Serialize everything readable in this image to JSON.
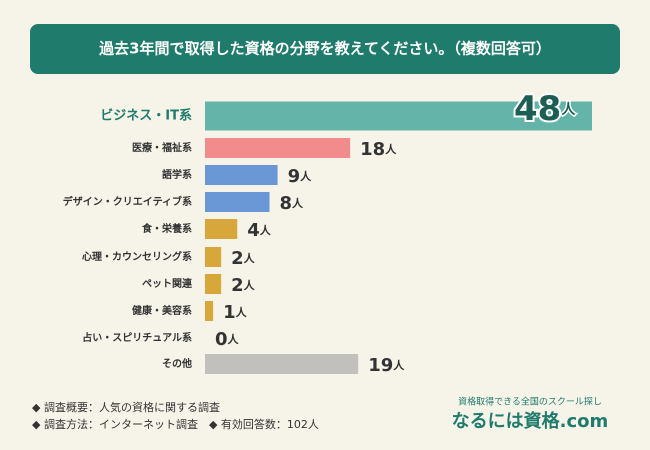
{
  "chart_data": {
    "type": "bar",
    "orientation": "horizontal",
    "title": "過去3年間で取得した資格の分野を教えてください。（複数回答可）",
    "categories": [
      "ビジネス・IT系",
      "医療・福祉系",
      "語学系",
      "デザイン・クリエイティブ系",
      "食・栄養系",
      "心理・カウンセリング系",
      "ペット関連",
      "健康・美容系",
      "占い・スピリチュアル系",
      "その他"
    ],
    "values": [
      48,
      18,
      9,
      8,
      4,
      2,
      2,
      1,
      0,
      19
    ],
    "unit": "人",
    "colors": [
      "#64b4aa",
      "#f28c8c",
      "#6a97d6",
      "#6a97d6",
      "#d7a73c",
      "#d7a73c",
      "#d7a73c",
      "#d7a73c",
      "#d7a73c",
      "#c2c0bc"
    ],
    "notes": [
      "◆ 調査概要：人気の資格に関する調査",
      "◆ 調査方法：インターネット調査　◆ 有効回答数：102人"
    ],
    "logo": {
      "tagline": "資格取得できる全国のスクール探し",
      "name": "なるには資格.com"
    }
  }
}
